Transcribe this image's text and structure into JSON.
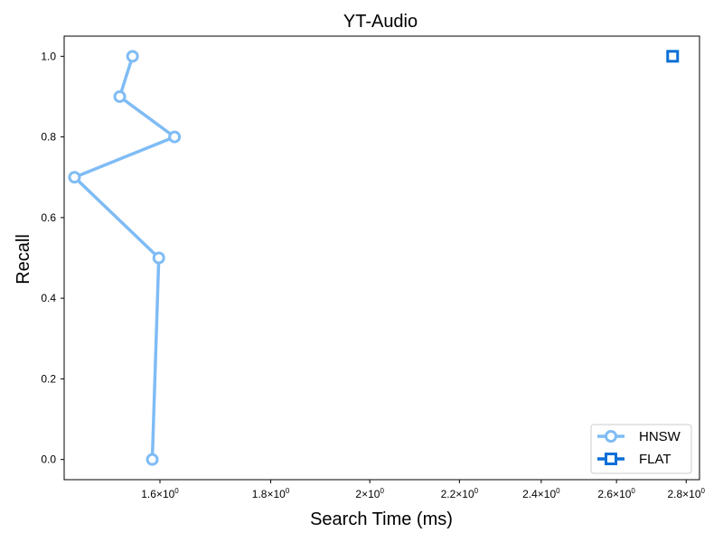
{
  "chart_data": {
    "type": "line",
    "title": "YT-Audio",
    "xlabel": "Search Time (ms)",
    "ylabel": "Recall",
    "xscale": "log",
    "xlim": [
      1.445,
      2.84
    ],
    "ylim": [
      -0.05,
      1.05
    ],
    "x_ticks": [
      {
        "value": 1.6,
        "base": "1.6",
        "sup": "0"
      },
      {
        "value": 1.8,
        "base": "1.8",
        "sup": "0"
      },
      {
        "value": 2.0,
        "base": "2",
        "sup": "0"
      },
      {
        "value": 2.2,
        "base": "2.2",
        "sup": "0"
      },
      {
        "value": 2.4,
        "base": "2.4",
        "sup": "0"
      },
      {
        "value": 2.6,
        "base": "2.6",
        "sup": "0"
      },
      {
        "value": 2.8,
        "base": "2.8",
        "sup": "0"
      }
    ],
    "y_ticks": [
      "0.0",
      "0.2",
      "0.4",
      "0.6",
      "0.8",
      "1.0"
    ],
    "legend_position": "lower-right",
    "series": [
      {
        "name": "HNSW",
        "color": "#7fbcf5",
        "marker": "circle",
        "points": [
          {
            "x": 1.587,
            "y": 0.0
          },
          {
            "x": 1.598,
            "y": 0.5
          },
          {
            "x": 1.461,
            "y": 0.7
          },
          {
            "x": 1.625,
            "y": 0.8
          },
          {
            "x": 1.533,
            "y": 0.9
          },
          {
            "x": 1.554,
            "y": 1.0
          }
        ]
      },
      {
        "name": "FLAT",
        "color": "#0a6fd6",
        "marker": "square",
        "points": [
          {
            "x": 2.76,
            "y": 1.0
          }
        ]
      }
    ]
  }
}
